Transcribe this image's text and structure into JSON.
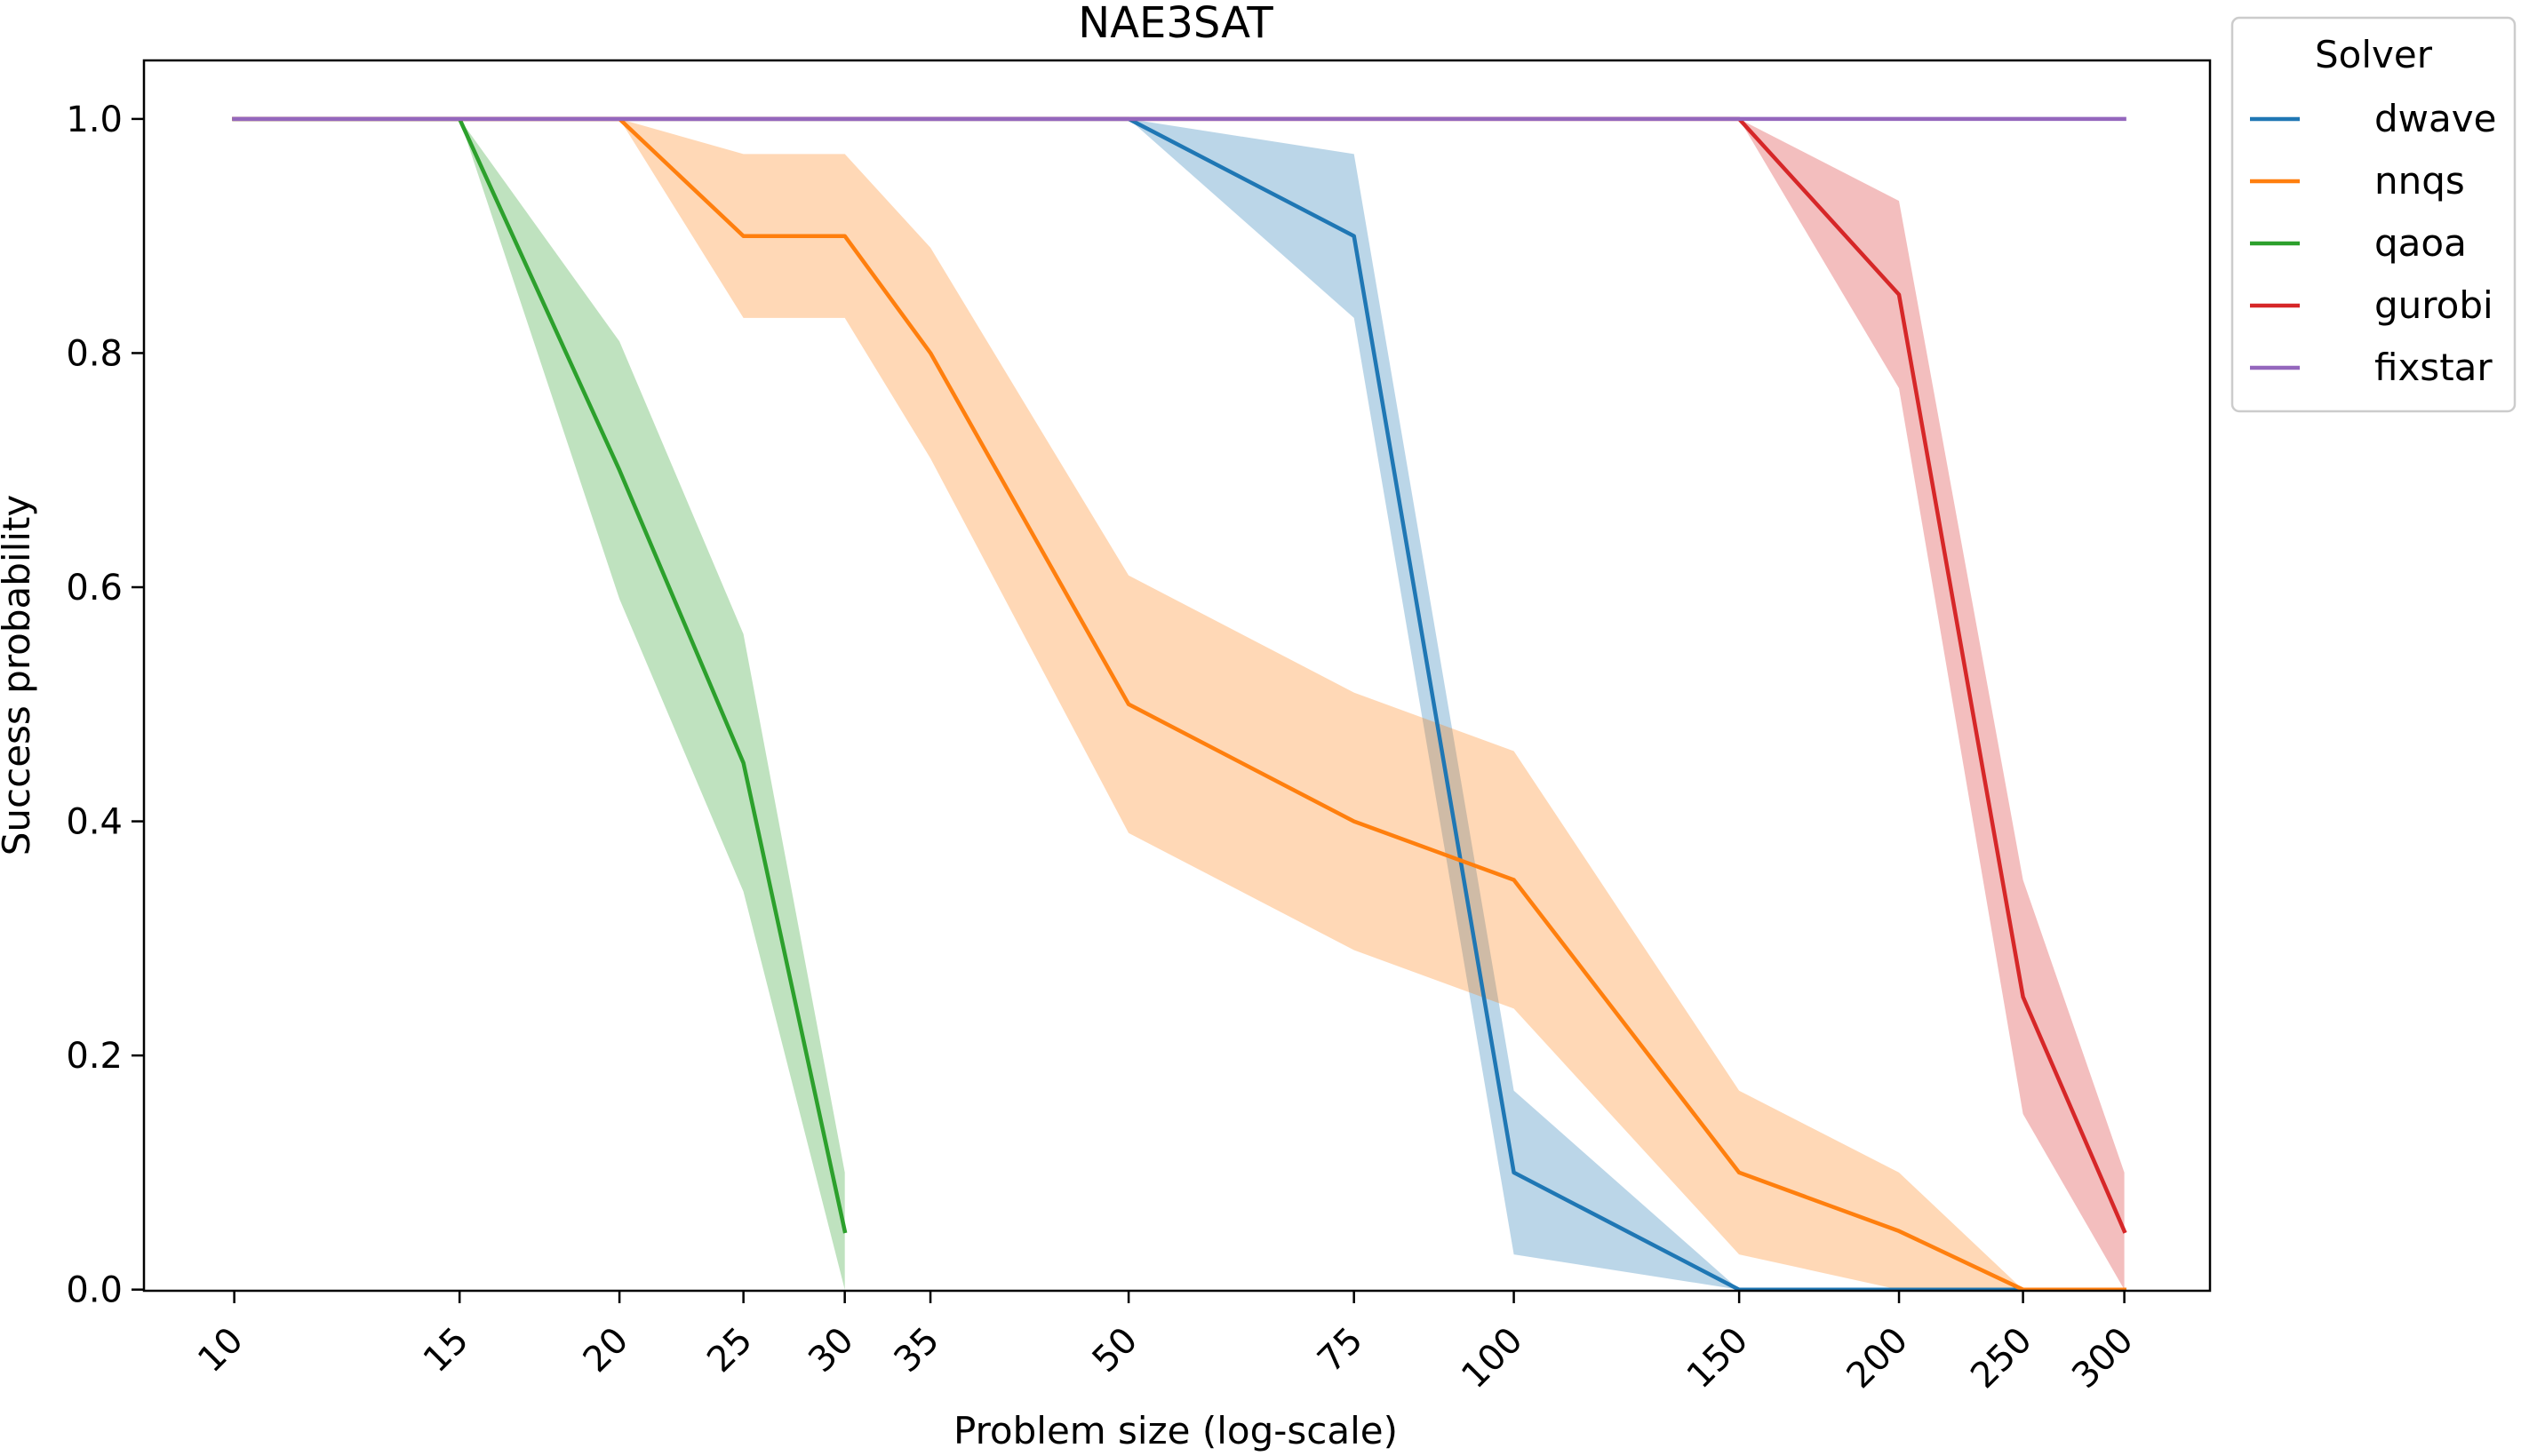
{
  "chart_data": {
    "type": "line",
    "title": "NAE3SAT",
    "xlabel": "Problem size (log-scale)",
    "ylabel": "Success probability",
    "xscale": "log",
    "x_ticks": [
      10,
      15,
      20,
      25,
      30,
      35,
      50,
      75,
      100,
      150,
      200,
      250,
      300
    ],
    "y_ticks": [
      0.0,
      0.2,
      0.4,
      0.6,
      0.8,
      1.0
    ],
    "xlim": [
      8.5,
      350
    ],
    "ylim": [
      -0.001,
      1.05
    ],
    "grid": false,
    "legend": {
      "title": "Solver",
      "position": "outside-top-right"
    },
    "series": [
      {
        "name": "dwave",
        "color": "#1f77b4",
        "x": [
          10,
          15,
          20,
          25,
          30,
          35,
          50,
          75,
          100,
          150,
          200,
          250,
          300
        ],
        "y": [
          1.0,
          1.0,
          1.0,
          1.0,
          1.0,
          1.0,
          1.0,
          0.9,
          0.1,
          0.0,
          0.0,
          0.0,
          0.0
        ],
        "lower": [
          1.0,
          1.0,
          1.0,
          1.0,
          1.0,
          1.0,
          1.0,
          0.83,
          0.03,
          0.0,
          0.0,
          0.0,
          0.0
        ],
        "upper": [
          1.0,
          1.0,
          1.0,
          1.0,
          1.0,
          1.0,
          1.0,
          0.97,
          0.17,
          0.0,
          0.0,
          0.0,
          0.0
        ]
      },
      {
        "name": "nnqs",
        "color": "#ff7f0e",
        "x": [
          10,
          15,
          20,
          25,
          30,
          35,
          50,
          75,
          100,
          150,
          200,
          250,
          300
        ],
        "y": [
          1.0,
          1.0,
          1.0,
          0.9,
          0.9,
          0.8,
          0.5,
          0.4,
          0.35,
          0.1,
          0.05,
          0.0,
          0.0
        ],
        "lower": [
          1.0,
          1.0,
          1.0,
          0.83,
          0.83,
          0.71,
          0.39,
          0.29,
          0.24,
          0.03,
          0.0,
          0.0,
          0.0
        ],
        "upper": [
          1.0,
          1.0,
          1.0,
          0.97,
          0.97,
          0.89,
          0.61,
          0.51,
          0.46,
          0.17,
          0.1,
          0.0,
          0.0
        ]
      },
      {
        "name": "qaoa",
        "color": "#2ca02c",
        "x": [
          10,
          15,
          20,
          25,
          30
        ],
        "y": [
          1.0,
          1.0,
          0.7,
          0.45,
          0.05
        ],
        "lower": [
          1.0,
          1.0,
          0.59,
          0.34,
          0.0
        ],
        "upper": [
          1.0,
          1.0,
          0.81,
          0.56,
          0.1
        ]
      },
      {
        "name": "gurobi",
        "color": "#d62728",
        "x": [
          10,
          15,
          20,
          25,
          30,
          35,
          50,
          75,
          100,
          150,
          200,
          250,
          300
        ],
        "y": [
          1.0,
          1.0,
          1.0,
          1.0,
          1.0,
          1.0,
          1.0,
          1.0,
          1.0,
          1.0,
          0.85,
          0.25,
          0.05
        ],
        "lower": [
          1.0,
          1.0,
          1.0,
          1.0,
          1.0,
          1.0,
          1.0,
          1.0,
          1.0,
          1.0,
          0.77,
          0.15,
          0.0
        ],
        "upper": [
          1.0,
          1.0,
          1.0,
          1.0,
          1.0,
          1.0,
          1.0,
          1.0,
          1.0,
          1.0,
          0.93,
          0.35,
          0.1
        ]
      },
      {
        "name": "fixstar",
        "color": "#9467bd",
        "x": [
          10,
          15,
          20,
          25,
          30,
          35,
          50,
          75,
          100,
          150,
          200,
          250,
          300
        ],
        "y": [
          1.0,
          1.0,
          1.0,
          1.0,
          1.0,
          1.0,
          1.0,
          1.0,
          1.0,
          1.0,
          1.0,
          1.0,
          1.0
        ],
        "lower": [
          1.0,
          1.0,
          1.0,
          1.0,
          1.0,
          1.0,
          1.0,
          1.0,
          1.0,
          1.0,
          1.0,
          1.0,
          1.0
        ],
        "upper": [
          1.0,
          1.0,
          1.0,
          1.0,
          1.0,
          1.0,
          1.0,
          1.0,
          1.0,
          1.0,
          1.0,
          1.0,
          1.0
        ]
      }
    ]
  }
}
